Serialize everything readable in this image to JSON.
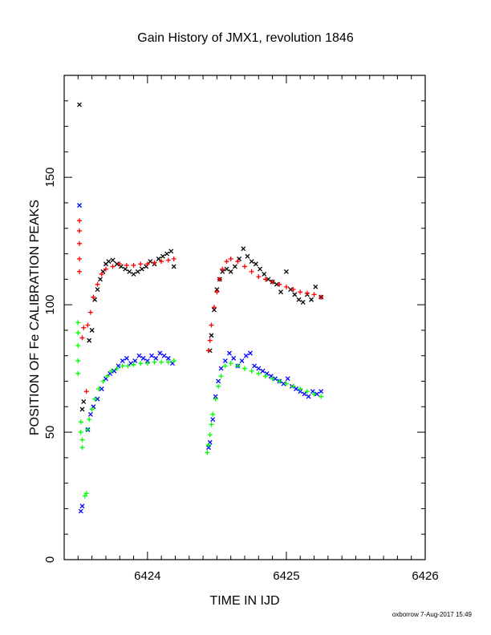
{
  "chart_data": {
    "type": "scatter",
    "title": "Gain History of JMX1, revolution 1846",
    "xlabel": "TIME IN IJD",
    "ylabel": "POSITION OF Fe CALIBRATION PEAKS",
    "xlim": [
      6423.4,
      6426.0
    ],
    "ylim": [
      0,
      190
    ],
    "x_ticks": [
      6424,
      6425,
      6426
    ],
    "y_ticks": [
      0,
      50,
      100,
      150
    ],
    "grid": false,
    "colors": {
      "black": "#000000",
      "red": "#ff0000",
      "blue": "#0000ff",
      "green": "#00ff00"
    },
    "series": [
      {
        "marker": "x",
        "color": "#000000",
        "points": [
          [
            6423.51,
            178.5
          ],
          [
            6423.53,
            59
          ],
          [
            6423.54,
            62
          ],
          [
            6423.58,
            86
          ],
          [
            6423.6,
            90
          ],
          [
            6423.62,
            102
          ],
          [
            6423.64,
            106
          ],
          [
            6423.66,
            110
          ],
          [
            6423.68,
            113
          ],
          [
            6423.7,
            116
          ],
          [
            6423.72,
            117
          ],
          [
            6423.75,
            117.5
          ],
          [
            6423.78,
            116
          ],
          [
            6423.81,
            115
          ],
          [
            6423.84,
            114
          ],
          [
            6423.87,
            113
          ],
          [
            6423.9,
            112
          ],
          [
            6423.93,
            113
          ],
          [
            6423.96,
            114
          ],
          [
            6423.99,
            115
          ],
          [
            6424.02,
            117
          ],
          [
            6424.05,
            116
          ],
          [
            6424.08,
            118
          ],
          [
            6424.11,
            119
          ],
          [
            6424.14,
            120
          ],
          [
            6424.17,
            121
          ],
          [
            6424.19,
            115
          ],
          [
            6424.45,
            82
          ],
          [
            6424.46,
            88
          ],
          [
            6424.48,
            98
          ],
          [
            6424.5,
            106
          ],
          [
            6424.52,
            110
          ],
          [
            6424.54,
            113
          ],
          [
            6424.57,
            114
          ],
          [
            6424.6,
            113
          ],
          [
            6424.63,
            115
          ],
          [
            6424.66,
            118
          ],
          [
            6424.69,
            122
          ],
          [
            6424.72,
            119
          ],
          [
            6424.75,
            117
          ],
          [
            6424.78,
            116
          ],
          [
            6424.81,
            114
          ],
          [
            6424.84,
            112
          ],
          [
            6424.87,
            110
          ],
          [
            6424.9,
            109
          ],
          [
            6424.93,
            108
          ],
          [
            6424.96,
            105
          ],
          [
            6425.0,
            113
          ],
          [
            6425.03,
            106
          ],
          [
            6425.06,
            104
          ],
          [
            6425.09,
            102
          ],
          [
            6425.12,
            101
          ],
          [
            6425.15,
            104
          ],
          [
            6425.18,
            102
          ],
          [
            6425.21,
            107
          ],
          [
            6425.25,
            103
          ]
        ]
      },
      {
        "marker": "x",
        "color": "#0000ff",
        "points": [
          [
            6423.51,
            139
          ],
          [
            6423.52,
            19
          ],
          [
            6423.53,
            21
          ],
          [
            6423.57,
            51
          ],
          [
            6423.59,
            57
          ],
          [
            6423.61,
            60
          ],
          [
            6423.64,
            63
          ],
          [
            6423.67,
            67
          ],
          [
            6423.7,
            71
          ],
          [
            6423.73,
            73
          ],
          [
            6423.76,
            74
          ],
          [
            6423.79,
            76
          ],
          [
            6423.82,
            78
          ],
          [
            6423.85,
            79
          ],
          [
            6423.88,
            77
          ],
          [
            6423.91,
            78
          ],
          [
            6423.94,
            80
          ],
          [
            6423.97,
            79
          ],
          [
            6424.0,
            78
          ],
          [
            6424.03,
            80
          ],
          [
            6424.06,
            79
          ],
          [
            6424.09,
            81
          ],
          [
            6424.12,
            80
          ],
          [
            6424.15,
            79
          ],
          [
            6424.18,
            77
          ],
          [
            6424.44,
            44
          ],
          [
            6424.45,
            46
          ],
          [
            6424.47,
            55
          ],
          [
            6424.49,
            64
          ],
          [
            6424.51,
            70
          ],
          [
            6424.53,
            75
          ],
          [
            6424.56,
            78
          ],
          [
            6424.59,
            81
          ],
          [
            6424.62,
            79
          ],
          [
            6424.65,
            76
          ],
          [
            6424.68,
            78
          ],
          [
            6424.71,
            80
          ],
          [
            6424.74,
            81
          ],
          [
            6424.77,
            76
          ],
          [
            6424.8,
            75
          ],
          [
            6424.83,
            74
          ],
          [
            6424.86,
            73
          ],
          [
            6424.89,
            72
          ],
          [
            6424.92,
            71
          ],
          [
            6424.95,
            70
          ],
          [
            6424.98,
            69
          ],
          [
            6425.01,
            71
          ],
          [
            6425.04,
            68
          ],
          [
            6425.07,
            67
          ],
          [
            6425.1,
            66
          ],
          [
            6425.13,
            65
          ],
          [
            6425.16,
            64
          ],
          [
            6425.19,
            66
          ],
          [
            6425.22,
            65
          ],
          [
            6425.25,
            66
          ]
        ]
      },
      {
        "marker": "+",
        "color": "#ff0000",
        "points": [
          [
            6423.51,
            133
          ],
          [
            6423.51,
            129
          ],
          [
            6423.51,
            124
          ],
          [
            6423.51,
            118
          ],
          [
            6423.51,
            113
          ],
          [
            6423.53,
            87
          ],
          [
            6423.54,
            91
          ],
          [
            6423.56,
            66
          ],
          [
            6423.57,
            92
          ],
          [
            6423.59,
            97
          ],
          [
            6423.61,
            103
          ],
          [
            6423.64,
            108
          ],
          [
            6423.67,
            112
          ],
          [
            6423.7,
            114
          ],
          [
            6423.75,
            115
          ],
          [
            6423.8,
            116
          ],
          [
            6423.85,
            115.5
          ],
          [
            6423.9,
            115.5
          ],
          [
            6423.95,
            116
          ],
          [
            6424.0,
            116
          ],
          [
            6424.05,
            116.5
          ],
          [
            6424.1,
            117
          ],
          [
            6424.15,
            117.5
          ],
          [
            6424.19,
            118
          ],
          [
            6424.44,
            82
          ],
          [
            6424.45,
            86
          ],
          [
            6424.46,
            92
          ],
          [
            6424.48,
            99
          ],
          [
            6424.5,
            105
          ],
          [
            6424.52,
            110
          ],
          [
            6424.54,
            114
          ],
          [
            6424.57,
            117
          ],
          [
            6424.6,
            118
          ],
          [
            6424.65,
            117
          ],
          [
            6424.7,
            115
          ],
          [
            6424.75,
            113
          ],
          [
            6424.8,
            111
          ],
          [
            6424.85,
            110
          ],
          [
            6424.9,
            109
          ],
          [
            6424.95,
            108
          ],
          [
            6425.0,
            107
          ],
          [
            6425.05,
            106
          ],
          [
            6425.1,
            105
          ],
          [
            6425.15,
            104.5
          ],
          [
            6425.2,
            104
          ],
          [
            6425.25,
            103
          ]
        ]
      },
      {
        "marker": "+",
        "color": "#00ff00",
        "points": [
          [
            6423.5,
            93
          ],
          [
            6423.5,
            89
          ],
          [
            6423.5,
            84
          ],
          [
            6423.5,
            78
          ],
          [
            6423.5,
            73
          ],
          [
            6423.52,
            54
          ],
          [
            6423.52,
            50
          ],
          [
            6423.53,
            47
          ],
          [
            6423.53,
            44
          ],
          [
            6423.55,
            25
          ],
          [
            6423.56,
            26
          ],
          [
            6423.57,
            51
          ],
          [
            6423.58,
            55
          ],
          [
            6423.6,
            59
          ],
          [
            6423.62,
            63
          ],
          [
            6423.65,
            67
          ],
          [
            6423.68,
            70
          ],
          [
            6423.71,
            72
          ],
          [
            6423.74,
            74
          ],
          [
            6423.78,
            75
          ],
          [
            6423.82,
            76
          ],
          [
            6423.86,
            76
          ],
          [
            6423.9,
            76.5
          ],
          [
            6423.95,
            77
          ],
          [
            6424.0,
            77
          ],
          [
            6424.05,
            77.5
          ],
          [
            6424.1,
            77.5
          ],
          [
            6424.15,
            77.5
          ],
          [
            6424.19,
            78
          ],
          [
            6424.43,
            42
          ],
          [
            6424.44,
            45
          ],
          [
            6424.45,
            49
          ],
          [
            6424.46,
            53
          ],
          [
            6424.47,
            57
          ],
          [
            6424.49,
            63
          ],
          [
            6424.51,
            68
          ],
          [
            6424.53,
            72
          ],
          [
            6424.56,
            76
          ],
          [
            6424.6,
            77
          ],
          [
            6424.65,
            76
          ],
          [
            6424.7,
            75
          ],
          [
            6424.75,
            74
          ],
          [
            6424.8,
            73
          ],
          [
            6424.85,
            72
          ],
          [
            6424.9,
            71
          ],
          [
            6424.95,
            70
          ],
          [
            6425.0,
            69
          ],
          [
            6425.05,
            68
          ],
          [
            6425.1,
            67
          ],
          [
            6425.15,
            66
          ],
          [
            6425.2,
            65
          ],
          [
            6425.25,
            64
          ]
        ]
      }
    ]
  },
  "footer": "oxborrow 7-Aug-2017 15:49"
}
